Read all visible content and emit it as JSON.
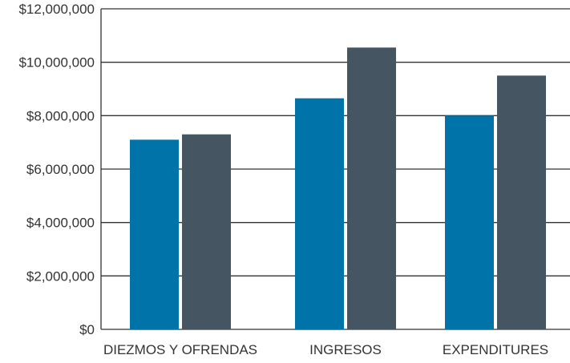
{
  "chart_data": {
    "type": "bar",
    "title": "",
    "xlabel": "",
    "ylabel": "",
    "categories": [
      "DIEZMOS Y OFRENDAS",
      "INGRESOS",
      "EXPENDITURES"
    ],
    "series": [
      {
        "color": "#0073a8",
        "values": [
          7100000,
          8650000,
          8000000
        ]
      },
      {
        "color": "#455561",
        "values": [
          7300000,
          10550000,
          9500000
        ]
      }
    ],
    "ylim": [
      0,
      12000000
    ],
    "y_ticks": [
      {
        "value": 0,
        "label": "$0"
      },
      {
        "value": 2000000,
        "label": "$2,000,000"
      },
      {
        "value": 4000000,
        "label": "$4,000,000"
      },
      {
        "value": 6000000,
        "label": "$6,000,000"
      },
      {
        "value": 8000000,
        "label": "$8,000,000"
      },
      {
        "value": 10000000,
        "label": "$10,000,000"
      },
      {
        "value": 12000000,
        "label": "$12,000,000"
      }
    ],
    "grid": true,
    "legend": "none",
    "gridline_color": "#333333"
  }
}
